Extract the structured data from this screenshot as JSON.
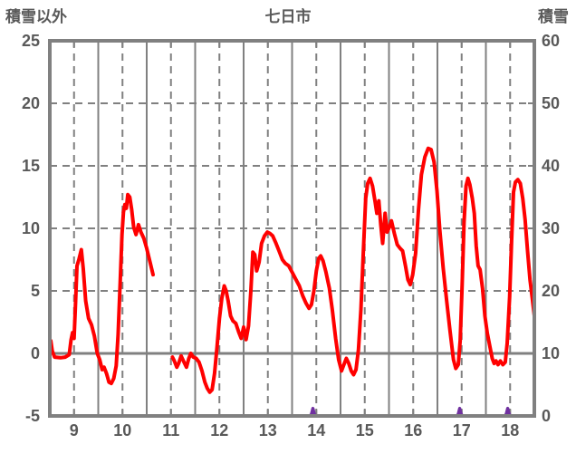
{
  "header": {
    "left_axis_title": "積雪以外",
    "chart_title": "七日市",
    "right_axis_title": "積雪"
  },
  "colors": {
    "text": "#595959",
    "grid": "#808080",
    "border": "#808080",
    "series_red": "#FF0000",
    "series_purple": "#7030A0",
    "background": "#FFFFFF"
  },
  "chart_data": {
    "type": "line",
    "title": "七日市",
    "legend": "none",
    "grid": "vertical solid at half-days, dashed at labeled days; horizontal dashed every 5 (left axis); solid line at left-axis 0",
    "x": {
      "min": 8.5,
      "max": 18.5,
      "ticks": [
        9,
        10,
        11,
        12,
        13,
        14,
        15,
        16,
        17,
        18
      ],
      "solid_gridlines": [
        9.5,
        10.5,
        11.5,
        12.5,
        13.5,
        14.5,
        15.5,
        16.5,
        17.5
      ]
    },
    "y_left": {
      "label": "積雪以外",
      "min": -5,
      "max": 25,
      "ticks": [
        25,
        20,
        15,
        10,
        5,
        0,
        -5
      ],
      "dashed_gridlines": [
        20,
        15,
        10,
        5
      ],
      "solid_gridlines": [
        0
      ]
    },
    "y_right": {
      "label": "積雪",
      "min": 0,
      "max": 60,
      "ticks": [
        60,
        50,
        40,
        30,
        20,
        10,
        0
      ]
    },
    "series": [
      {
        "name": "積雪以外",
        "axis": "left",
        "color": "#FF0000",
        "points": [
          [
            8.52,
            1.0
          ],
          [
            8.55,
            0.2
          ],
          [
            8.6,
            -0.3
          ],
          [
            8.72,
            -0.35
          ],
          [
            8.82,
            -0.3
          ],
          [
            8.9,
            -0.1
          ],
          [
            8.94,
            1.1
          ],
          [
            8.97,
            1.65
          ],
          [
            9.0,
            1.2
          ],
          [
            9.03,
            4.0
          ],
          [
            9.06,
            7.0
          ],
          [
            9.1,
            7.5
          ],
          [
            9.15,
            8.3
          ],
          [
            9.19,
            6.8
          ],
          [
            9.24,
            4.2
          ],
          [
            9.3,
            2.8
          ],
          [
            9.36,
            2.3
          ],
          [
            9.42,
            1.4
          ],
          [
            9.48,
            0.0
          ],
          [
            9.53,
            -0.5
          ],
          [
            9.58,
            -1.3
          ],
          [
            9.62,
            -1.1
          ],
          [
            9.67,
            -1.6
          ],
          [
            9.72,
            -2.3
          ],
          [
            9.77,
            -2.4
          ],
          [
            9.82,
            -2.0
          ],
          [
            9.87,
            -1.0
          ],
          [
            9.91,
            1.5
          ],
          [
            9.95,
            5.5
          ],
          [
            9.99,
            9.5
          ],
          [
            10.02,
            11.3
          ],
          [
            10.05,
            11.9
          ],
          [
            10.08,
            11.6
          ],
          [
            10.11,
            12.7
          ],
          [
            10.15,
            12.5
          ],
          [
            10.19,
            11.5
          ],
          [
            10.23,
            10.1
          ],
          [
            10.28,
            9.5
          ],
          [
            10.33,
            10.3
          ],
          [
            10.38,
            9.7
          ],
          [
            10.44,
            9.2
          ],
          [
            10.5,
            8.4
          ],
          [
            10.57,
            7.3
          ],
          [
            10.63,
            6.3
          ],
          null,
          [
            11.03,
            -0.3
          ],
          [
            11.07,
            -0.6
          ],
          [
            11.12,
            -1.1
          ],
          [
            11.16,
            -0.8
          ],
          [
            11.21,
            -0.2
          ],
          [
            11.27,
            -0.7
          ],
          [
            11.32,
            -1.1
          ],
          [
            11.37,
            -0.4
          ],
          [
            11.41,
            0.0
          ],
          [
            11.46,
            -0.3
          ],
          [
            11.52,
            -0.4
          ],
          [
            11.58,
            -0.7
          ],
          [
            11.64,
            -1.4
          ],
          [
            11.7,
            -2.3
          ],
          [
            11.75,
            -2.8
          ],
          [
            11.8,
            -3.1
          ],
          [
            11.85,
            -2.9
          ],
          [
            11.9,
            -1.6
          ],
          [
            11.95,
            0.5
          ],
          [
            12.0,
            2.8
          ],
          [
            12.05,
            4.4
          ],
          [
            12.1,
            5.4
          ],
          [
            12.14,
            5.0
          ],
          [
            12.18,
            4.2
          ],
          [
            12.23,
            3.0
          ],
          [
            12.28,
            2.6
          ],
          [
            12.34,
            2.4
          ],
          [
            12.4,
            1.7
          ],
          [
            12.45,
            1.2
          ],
          [
            12.5,
            2.1
          ],
          [
            12.55,
            1.1
          ],
          [
            12.6,
            2.2
          ],
          [
            12.65,
            5.0
          ],
          [
            12.69,
            8.1
          ],
          [
            12.73,
            7.9
          ],
          [
            12.77,
            6.6
          ],
          [
            12.82,
            7.3
          ],
          [
            12.87,
            8.8
          ],
          [
            12.93,
            9.4
          ],
          [
            12.99,
            9.7
          ],
          [
            13.04,
            9.6
          ],
          [
            13.1,
            9.4
          ],
          [
            13.17,
            8.8
          ],
          [
            13.24,
            8.1
          ],
          [
            13.3,
            7.5
          ],
          [
            13.36,
            7.2
          ],
          [
            13.43,
            7.0
          ],
          [
            13.5,
            6.5
          ],
          [
            13.58,
            5.9
          ],
          [
            13.65,
            5.4
          ],
          [
            13.72,
            4.6
          ],
          [
            13.79,
            4.0
          ],
          [
            13.85,
            3.6
          ],
          [
            13.9,
            3.9
          ],
          [
            13.95,
            5.0
          ],
          [
            14.0,
            6.6
          ],
          [
            14.05,
            7.6
          ],
          [
            14.09,
            7.8
          ],
          [
            14.14,
            7.4
          ],
          [
            14.2,
            6.5
          ],
          [
            14.27,
            5.2
          ],
          [
            14.33,
            3.5
          ],
          [
            14.4,
            1.2
          ],
          [
            14.46,
            -0.5
          ],
          [
            14.52,
            -1.4
          ],
          [
            14.57,
            -0.9
          ],
          [
            14.62,
            -0.4
          ],
          [
            14.67,
            -0.8
          ],
          [
            14.72,
            -1.4
          ],
          [
            14.77,
            -1.7
          ],
          [
            14.82,
            -1.3
          ],
          [
            14.87,
            0.3
          ],
          [
            14.92,
            3.5
          ],
          [
            14.97,
            8.0
          ],
          [
            15.02,
            12.4
          ],
          [
            15.06,
            13.6
          ],
          [
            15.11,
            14.0
          ],
          [
            15.16,
            13.4
          ],
          [
            15.21,
            12.2
          ],
          [
            15.25,
            11.2
          ],
          [
            15.29,
            12.2
          ],
          [
            15.33,
            10.3
          ],
          [
            15.37,
            8.8
          ],
          [
            15.42,
            11.2
          ],
          [
            15.46,
            9.7
          ],
          [
            15.51,
            10.1
          ],
          [
            15.55,
            10.6
          ],
          [
            15.61,
            9.6
          ],
          [
            15.67,
            8.7
          ],
          [
            15.73,
            8.4
          ],
          [
            15.78,
            8.2
          ],
          [
            15.84,
            7.0
          ],
          [
            15.89,
            5.9
          ],
          [
            15.94,
            5.5
          ],
          [
            15.99,
            6.3
          ],
          [
            16.05,
            8.0
          ],
          [
            16.11,
            11.5
          ],
          [
            16.17,
            14.3
          ],
          [
            16.24,
            15.7
          ],
          [
            16.31,
            16.4
          ],
          [
            16.37,
            16.3
          ],
          [
            16.43,
            15.3
          ],
          [
            16.49,
            13.0
          ],
          [
            16.55,
            9.8
          ],
          [
            16.62,
            6.8
          ],
          [
            16.69,
            4.2
          ],
          [
            16.76,
            1.8
          ],
          [
            16.83,
            -0.5
          ],
          [
            16.88,
            -1.2
          ],
          [
            16.93,
            -0.9
          ],
          [
            16.97,
            1.0
          ],
          [
            17.01,
            5.5
          ],
          [
            17.05,
            10.5
          ],
          [
            17.09,
            13.4
          ],
          [
            17.13,
            14.0
          ],
          [
            17.17,
            13.5
          ],
          [
            17.22,
            12.4
          ],
          [
            17.26,
            11.2
          ],
          [
            17.3,
            8.6
          ],
          [
            17.34,
            7.0
          ],
          [
            17.38,
            6.7
          ],
          [
            17.43,
            5.2
          ],
          [
            17.48,
            3.0
          ],
          [
            17.53,
            1.6
          ],
          [
            17.58,
            0.6
          ],
          [
            17.63,
            -0.4
          ],
          [
            17.67,
            -0.8
          ],
          [
            17.71,
            -0.6
          ],
          [
            17.75,
            -0.9
          ],
          [
            17.8,
            -0.6
          ],
          [
            17.85,
            -0.9
          ],
          [
            17.9,
            -0.7
          ],
          [
            17.94,
            0.8
          ],
          [
            17.99,
            4.5
          ],
          [
            18.03,
            9.0
          ],
          [
            18.07,
            12.9
          ],
          [
            18.11,
            13.7
          ],
          [
            18.16,
            13.9
          ],
          [
            18.21,
            13.6
          ],
          [
            18.26,
            12.4
          ],
          [
            18.31,
            10.7
          ],
          [
            18.36,
            8.2
          ],
          [
            18.41,
            5.9
          ],
          [
            18.46,
            4.3
          ],
          [
            18.5,
            3.0
          ]
        ]
      },
      {
        "name": "積雪",
        "axis": "right",
        "color": "#7030A0",
        "points": [
          [
            8.52,
            0
          ],
          [
            10.44,
            0
          ],
          null,
          [
            11.0,
            0
          ],
          [
            13.87,
            0
          ],
          [
            13.9,
            0.3
          ],
          [
            13.93,
            1.2
          ],
          [
            13.96,
            0.3
          ],
          [
            13.99,
            0
          ],
          [
            16.9,
            0
          ],
          [
            16.93,
            0.3
          ],
          [
            16.96,
            1.2
          ],
          [
            16.99,
            0.3
          ],
          [
            17.02,
            0
          ],
          [
            17.89,
            0
          ],
          [
            17.92,
            0.3
          ],
          [
            17.95,
            1.2
          ],
          [
            17.98,
            0.3
          ],
          [
            18.01,
            0
          ],
          [
            18.5,
            0
          ]
        ]
      }
    ]
  }
}
